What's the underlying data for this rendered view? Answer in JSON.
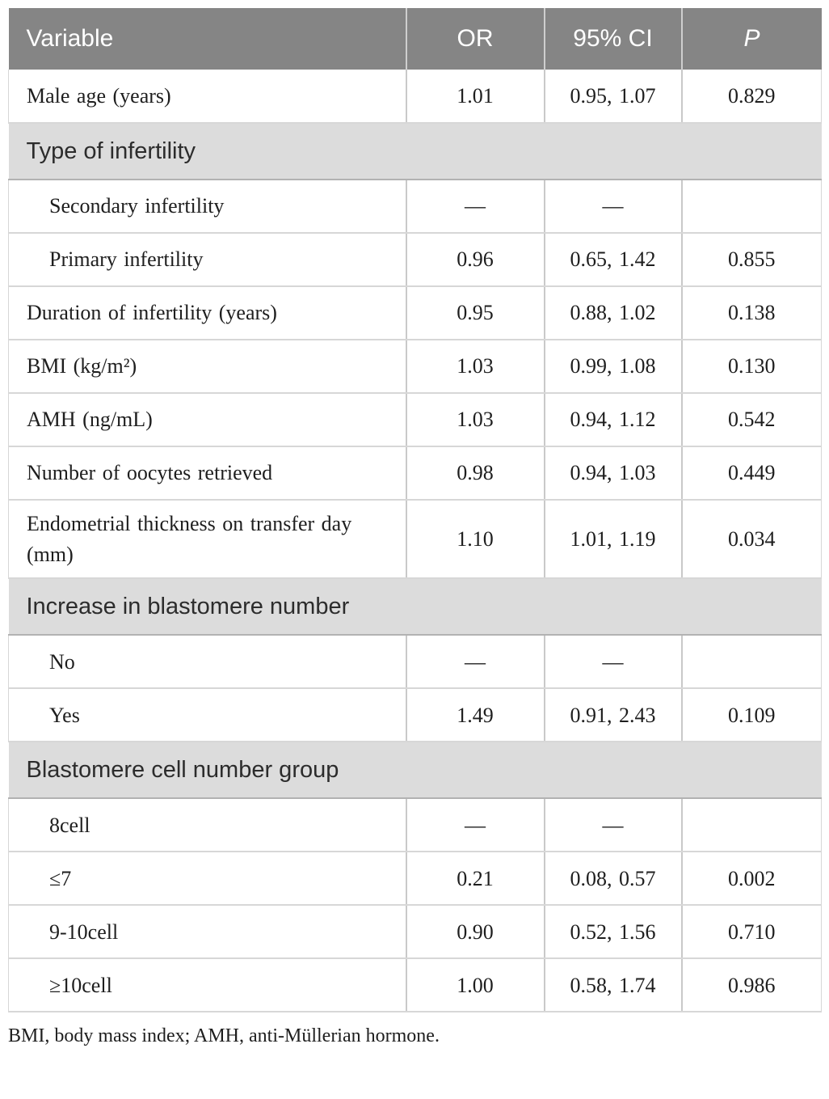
{
  "colors": {
    "header_bg": "#858585",
    "header_text": "#ffffff",
    "section_band_bg": "#dcdcdc",
    "grid_line": "#c9c9c9",
    "body_text": "#1e1e1e"
  },
  "table": {
    "columns": [
      {
        "key": "variable",
        "label": "Variable"
      },
      {
        "key": "or",
        "label": "OR"
      },
      {
        "key": "ci",
        "label": "95% CI"
      },
      {
        "key": "p",
        "label": "P"
      }
    ],
    "rows": [
      {
        "type": "data",
        "indent": false,
        "variable": "Male age (years)",
        "or": "1.01",
        "ci": "0.95, 1.07",
        "p": "0.829"
      },
      {
        "type": "section",
        "label": "Type of infertility"
      },
      {
        "type": "data",
        "indent": true,
        "variable": "Secondary infertility",
        "or": "—",
        "ci": "—",
        "p": ""
      },
      {
        "type": "data",
        "indent": true,
        "variable": "Primary infertility",
        "or": "0.96",
        "ci": "0.65, 1.42",
        "p": "0.855"
      },
      {
        "type": "data",
        "indent": false,
        "variable": "Duration of infertility (years)",
        "or": "0.95",
        "ci": "0.88, 1.02",
        "p": "0.138"
      },
      {
        "type": "data",
        "indent": false,
        "variable": "BMI (kg/m²)",
        "or": "1.03",
        "ci": "0.99, 1.08",
        "p": "0.130"
      },
      {
        "type": "data",
        "indent": false,
        "variable": "AMH (ng/mL)",
        "or": "1.03",
        "ci": "0.94, 1.12",
        "p": "0.542"
      },
      {
        "type": "data",
        "indent": false,
        "variable": "Number of oocytes retrieved",
        "or": "0.98",
        "ci": "0.94, 1.03",
        "p": "0.449"
      },
      {
        "type": "data",
        "indent": false,
        "variable": "Endometrial thickness on transfer day (mm)",
        "or": "1.10",
        "ci": "1.01, 1.19",
        "p": "0.034"
      },
      {
        "type": "section",
        "label": "Increase in blastomere number"
      },
      {
        "type": "data",
        "indent": true,
        "variable": "No",
        "or": "—",
        "ci": "—",
        "p": ""
      },
      {
        "type": "data",
        "indent": true,
        "variable": "Yes",
        "or": "1.49",
        "ci": "0.91, 2.43",
        "p": "0.109"
      },
      {
        "type": "section",
        "label": "Blastomere cell number group"
      },
      {
        "type": "data",
        "indent": true,
        "variable": "8cell",
        "or": "—",
        "ci": "—",
        "p": ""
      },
      {
        "type": "data",
        "indent": true,
        "variable": "≤7",
        "or": "0.21",
        "ci": "0.08, 0.57",
        "p": "0.002"
      },
      {
        "type": "data",
        "indent": true,
        "variable": "9-10cell",
        "or": "0.90",
        "ci": "0.52, 1.56",
        "p": "0.710"
      },
      {
        "type": "data",
        "indent": true,
        "variable": "≥10cell",
        "or": "1.00",
        "ci": "0.58, 1.74",
        "p": "0.986"
      }
    ],
    "footnote": "BMI, body mass index; AMH, anti-Müllerian hormone."
  }
}
